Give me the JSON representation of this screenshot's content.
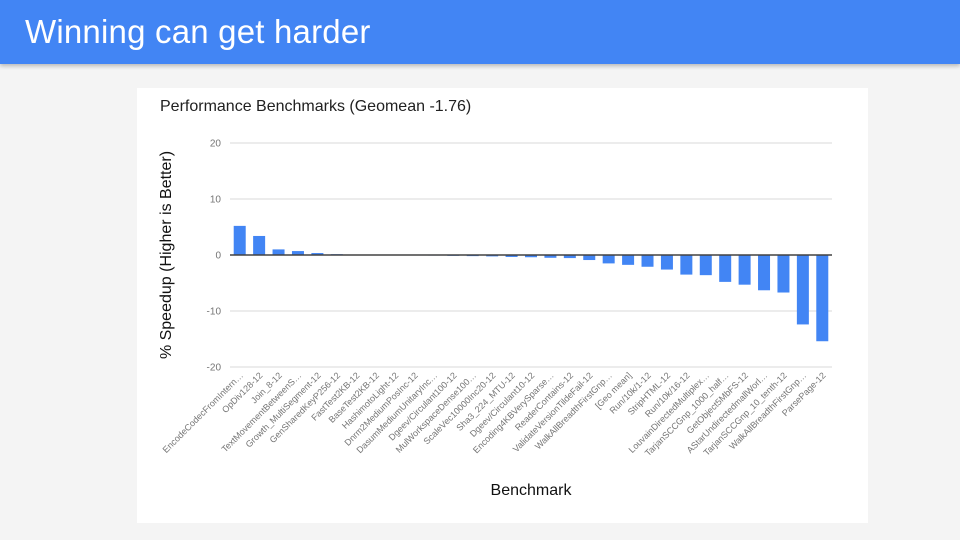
{
  "slide": {
    "title": "Winning can get harder"
  },
  "colors": {
    "header_bg": "#4285f4",
    "header_text": "#ffffff",
    "slide_bg": "#f4f4f4",
    "card_bg": "#ffffff",
    "bar": "#4285f4",
    "gridline": "#d9d9d9",
    "baseline": "#424242",
    "tick_text": "#757575",
    "chart_text": "#212121"
  },
  "chart_data": {
    "type": "bar",
    "title": "Performance Benchmarks (Geomean -1.76)",
    "xlabel": "Benchmark",
    "ylabel": "% Speedup (Higher is Better)",
    "ylim": [
      -20,
      20
    ],
    "yticks": [
      20,
      10,
      0,
      -10,
      -20
    ],
    "grid": true,
    "legend": "none",
    "geomean": -1.76,
    "categories": [
      "EncodeCodecFromIntern…",
      "OpDiv128-12",
      "Join_8-12",
      "TextMovementBetweenS…",
      "Growth_MultiSegment-12",
      "GenSharedKeyP256-12",
      "FastTest2KB-12",
      "BaseTest2KB-12",
      "HashimotoLight-12",
      "Dnrm2MediumPosInc-12",
      "DasumMediumUnitaryInc…",
      "Dgeev/Circulant100-12",
      "MulWorkspaceDense100…",
      "ScaleVec10000Inc20-12",
      "Sha3_224_MTU-12",
      "Dgeev/Circulant10-12",
      "Encoding4KBVerySparse…",
      "ReaderContains-12",
      "ValidateVersionTildeFail-12",
      "WalkAllBreadthFirstGnp…",
      "[Geo mean]",
      "Run/10k/1-12",
      "StripHTML-12",
      "Run/10k/16-12",
      "LouvainDirectedMultiplex…",
      "TarjanSCCGnp_1000_half…",
      "GetObject5MbFS-12",
      "AStarUndirectedmallWorl…",
      "TarjanSCCGnp_10_tenth-12",
      "WalkAllBreadthFirstGnp…",
      "ParsePage-12"
    ],
    "values": [
      5.2,
      3.4,
      1.0,
      0.7,
      0.35,
      0.15,
      0.05,
      0.0,
      -0.05,
      -0.08,
      -0.1,
      -0.15,
      -0.2,
      -0.25,
      -0.35,
      -0.4,
      -0.5,
      -0.55,
      -0.9,
      -1.5,
      -1.76,
      -2.1,
      -2.6,
      -3.5,
      -3.6,
      -4.8,
      -5.3,
      -6.3,
      -6.7,
      -12.4,
      -15.4
    ]
  }
}
